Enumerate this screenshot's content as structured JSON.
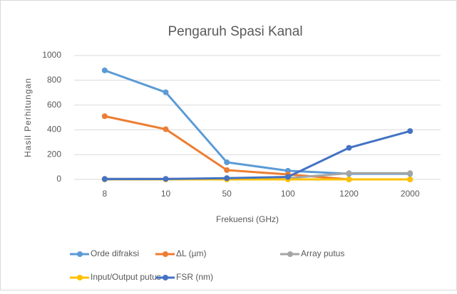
{
  "chart_data": {
    "type": "line",
    "title": "Pengaruh Spasi Kanal",
    "xlabel": "Frekuensi (GHz)",
    "ylabel": "Hasil Perhitungan",
    "categories": [
      "8",
      "10",
      "50",
      "100",
      "1200",
      "2000"
    ],
    "series": [
      {
        "name": "Orde difraksi",
        "color": "#5b9bd5",
        "values": [
          880,
          703,
          138,
          70,
          45,
          45
        ]
      },
      {
        "name": "ΔL (µm)",
        "color": "#ed7d31",
        "values": [
          510,
          405,
          75,
          40,
          0,
          0
        ]
      },
      {
        "name": "Array putus",
        "color": "#a5a5a5",
        "values": [
          5,
          5,
          5,
          10,
          50,
          50
        ]
      },
      {
        "name": "Input/Output putus",
        "color": "#ffc000",
        "values": [
          0,
          0,
          0,
          0,
          0,
          0
        ]
      },
      {
        "name": "FSR (nm)",
        "color": "#4472c4",
        "values": [
          2,
          3,
          10,
          20,
          255,
          390
        ]
      }
    ],
    "ylim": [
      0,
      1000
    ],
    "yticks": [
      0,
      200,
      400,
      600,
      800,
      1000
    ],
    "grid": true
  }
}
